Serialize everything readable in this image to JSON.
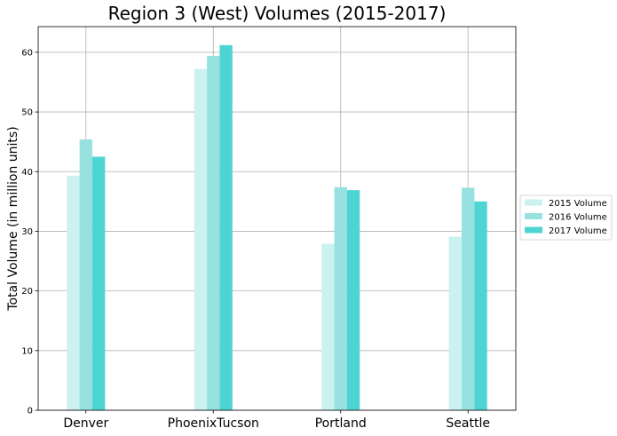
{
  "chart_data": {
    "type": "bar",
    "title": "Region 3 (West) Volumes (2015-2017)",
    "xlabel": "",
    "ylabel": "Total Volume (in million units)",
    "categories": [
      "Denver",
      "PhoenixTucson",
      "Portland",
      "Seattle"
    ],
    "series": [
      {
        "name": "2015 Volume",
        "color": "#cbf1f1",
        "values": [
          39.3,
          57.2,
          27.9,
          29.1
        ]
      },
      {
        "name": "2016 Volume",
        "color": "#97e1e1",
        "values": [
          45.4,
          59.4,
          37.4,
          37.3
        ]
      },
      {
        "name": "2017 Volume",
        "color": "#4fd4d4",
        "values": [
          42.5,
          61.2,
          36.9,
          35.0
        ]
      }
    ],
    "ylim": [
      0,
      64.3
    ],
    "yticks": [
      0,
      10,
      20,
      30,
      40,
      50,
      60
    ],
    "grid": true,
    "legend_placement": "right"
  }
}
